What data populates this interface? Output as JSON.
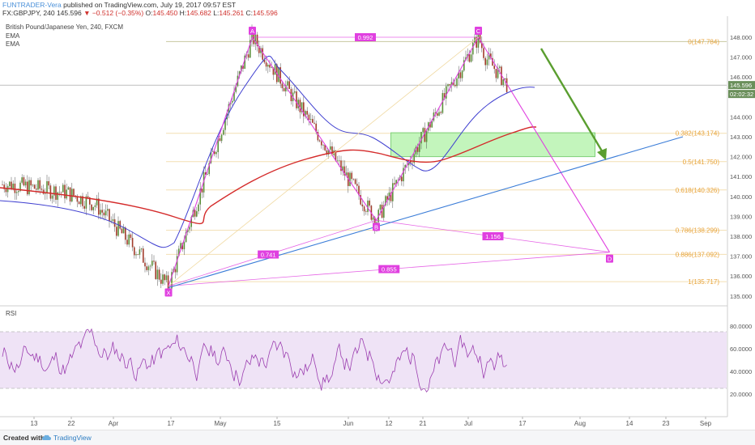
{
  "header": {
    "publisher": "FUNTRADER-Vera",
    "published_text": "published on TradingView.com, July 19, 2017 09:57 EST",
    "symbol": "FX:GBPJPY, 240",
    "last": "145.596",
    "change": "▼ −0.512 (−0.35%)",
    "o_label": "O:",
    "o": "145.450",
    "h_label": "H:",
    "h": "145.682",
    "l_label": "L:",
    "l": "145.261",
    "c_label": "C:",
    "c": "145.596"
  },
  "legend": {
    "title": "British Pound/Japanese Yen, 240, FXCM",
    "ema1": "EMA",
    "ema2": "EMA"
  },
  "price_axis": {
    "ticks": [
      "148.000",
      "147.000",
      "146.000",
      "144.000",
      "143.000",
      "142.000",
      "141.000",
      "140.000",
      "139.000",
      "138.000",
      "137.000",
      "136.000",
      "135.000"
    ],
    "current_price": "145.596",
    "countdown": "02:02:32"
  },
  "time_axis": {
    "labels": [
      "13",
      "22",
      "Apr",
      "17",
      "May",
      "15",
      "Jun",
      "12",
      "21",
      "Jul",
      "17",
      "Aug",
      "14",
      "23",
      "Sep"
    ]
  },
  "rsi": {
    "label": "RSI",
    "ticks": [
      "80.0000",
      "60.0000",
      "40.0000",
      "20.0000"
    ]
  },
  "footer": {
    "created": "Created with",
    "brand": "TradingView"
  },
  "chart_data": {
    "type": "line",
    "title": "British Pound/Japanese Yen, 240, FXCM",
    "pattern": {
      "points": [
        {
          "label": "X",
          "date": "2017-04-17",
          "price": 135.5
        },
        {
          "label": "A",
          "date": "2017-05-10",
          "price": 148.0
        },
        {
          "label": "B",
          "date": "2017-06-13",
          "price": 138.8
        },
        {
          "label": "C",
          "date": "2017-07-11",
          "price": 148.0
        },
        {
          "label": "D",
          "date": "2017-08-16",
          "price": 137.2
        }
      ],
      "ratios": [
        "0.992",
        "1.156",
        "0.741",
        "0.855"
      ]
    },
    "fib_levels": [
      {
        "ratio": "0",
        "label": "0(147.784)",
        "price": 147.784
      },
      {
        "ratio": "0.382",
        "label": "0.382(143.174)",
        "price": 143.174
      },
      {
        "ratio": "0.5",
        "label": "0.5(141.750)",
        "price": 141.75
      },
      {
        "ratio": "0.618",
        "label": "0.618(140.326)",
        "price": 140.326
      },
      {
        "ratio": "0.786",
        "label": "0.786(138.299)",
        "price": 138.299
      },
      {
        "ratio": "0.886",
        "label": "0.886(137.092)",
        "price": 137.092
      },
      {
        "ratio": "1",
        "label": "1(135.717)",
        "price": 135.717
      }
    ],
    "target_zone": {
      "price_low": 142.0,
      "price_high": 143.2
    },
    "rsi": {
      "ylim": [
        0,
        100
      ],
      "overbought": 75,
      "oversold": 25
    },
    "colors": {
      "pattern": "#e040e0",
      "ema_fast": "#3f3fd0",
      "ema_slow": "#d42a2a",
      "trend": "#3b7dd8",
      "arrow": "#5a9e2f",
      "fib": "#e8a33a",
      "zone": "#b9f3b0",
      "rsi": "#9c3fb0"
    }
  }
}
